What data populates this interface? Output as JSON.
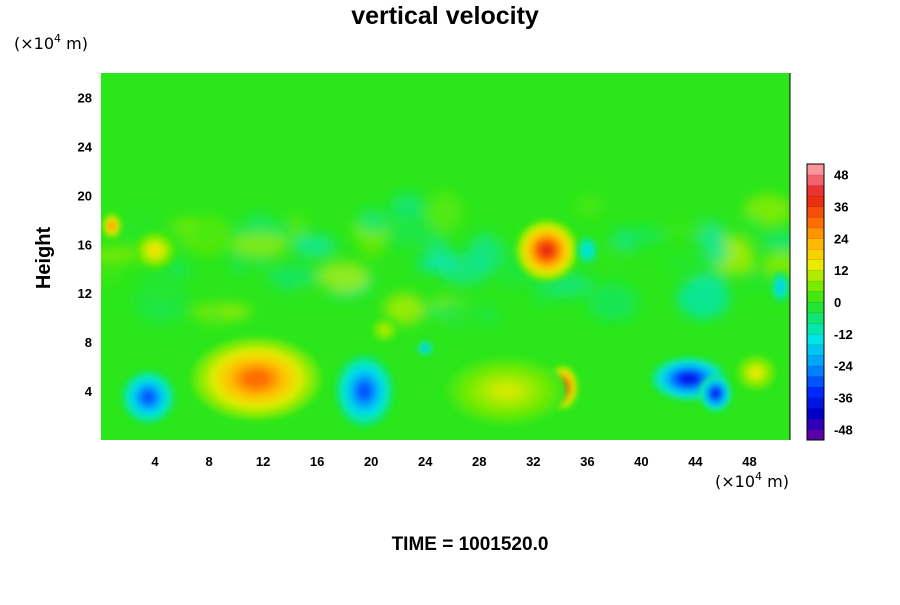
{
  "chart_data": {
    "type": "heatmap",
    "title": "vertical velocity",
    "ylabel": "Height",
    "xunit": "(×10",
    "xunit_exp": "4",
    "xunit_tail": " m)",
    "yunit": "(×10",
    "yunit_exp": "4",
    "yunit_tail": " m)",
    "x_ticks": [
      "4",
      "8",
      "12",
      "16",
      "20",
      "24",
      "28",
      "32",
      "36",
      "40",
      "44",
      "48"
    ],
    "x_tick_values": [
      4,
      8,
      12,
      16,
      20,
      24,
      28,
      32,
      36,
      40,
      44,
      48
    ],
    "y_ticks": [
      "4",
      "8",
      "12",
      "16",
      "20",
      "24",
      "28"
    ],
    "y_tick_values": [
      4,
      8,
      12,
      16,
      20,
      24,
      28
    ],
    "xlim": [
      0,
      51
    ],
    "ylim": [
      0,
      30
    ],
    "colorbar": {
      "ticks": [
        "48",
        "36",
        "24",
        "12",
        "0",
        "-12",
        "-24",
        "-36",
        "-48"
      ],
      "tick_values": [
        48,
        36,
        24,
        12,
        0,
        -12,
        -24,
        -36,
        -48
      ],
      "range": [
        -52,
        52
      ]
    },
    "field_features": [
      {
        "kind": "updraft",
        "x": 11.5,
        "y": 5.0,
        "value": 30,
        "rx": 4.8,
        "ry": 3.4
      },
      {
        "kind": "updraft",
        "x": 34.2,
        "y": 4.3,
        "value": 40,
        "rx": 1.1,
        "ry": 1.8
      },
      {
        "kind": "updraft",
        "x": 33.0,
        "y": 15.5,
        "value": 38,
        "rx": 2.3,
        "ry": 2.5
      },
      {
        "kind": "updraft",
        "x": 0.8,
        "y": 17.5,
        "value": 28,
        "rx": 0.7,
        "ry": 1.0
      },
      {
        "kind": "updraft",
        "x": 4.0,
        "y": 15.5,
        "value": 16,
        "rx": 1.5,
        "ry": 1.5
      },
      {
        "kind": "updraft",
        "x": 48.5,
        "y": 5.5,
        "value": 14,
        "rx": 1.5,
        "ry": 1.5
      },
      {
        "kind": "updraft",
        "x": 30.0,
        "y": 4.0,
        "value": 12,
        "rx": 4.5,
        "ry": 2.8
      },
      {
        "kind": "updraft",
        "x": 21.0,
        "y": 9.0,
        "value": 10,
        "rx": 1.0,
        "ry": 1.0
      },
      {
        "kind": "downdraft",
        "x": 3.5,
        "y": 3.5,
        "value": -30,
        "rx": 2.0,
        "ry": 2.2
      },
      {
        "kind": "downdraft",
        "x": 19.5,
        "y": 4.0,
        "value": -30,
        "rx": 2.2,
        "ry": 3.0
      },
      {
        "kind": "downdraft",
        "x": 43.5,
        "y": 5.0,
        "value": -38,
        "rx": 2.8,
        "ry": 1.8
      },
      {
        "kind": "downdraft",
        "x": 45.5,
        "y": 3.8,
        "value": -38,
        "rx": 1.2,
        "ry": 1.5
      },
      {
        "kind": "downdraft",
        "x": 36.0,
        "y": 15.5,
        "value": -16,
        "rx": 0.8,
        "ry": 1.2
      },
      {
        "kind": "downdraft",
        "x": 50.3,
        "y": 12.5,
        "value": -18,
        "rx": 0.7,
        "ry": 1.3
      },
      {
        "kind": "downdraft",
        "x": 24.0,
        "y": 7.5,
        "value": -20,
        "rx": 0.6,
        "ry": 0.6
      }
    ]
  },
  "footer": {
    "time_label": "TIME = 1001520.0"
  }
}
